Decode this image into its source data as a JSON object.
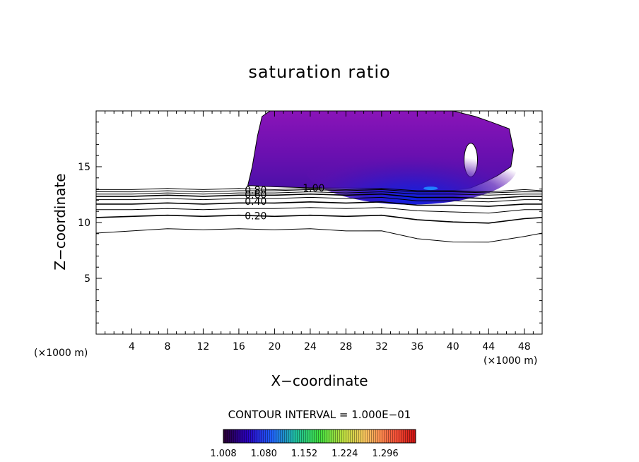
{
  "chart_data": {
    "type": "contour",
    "title": "saturation ratio",
    "xlabel": "X−coordinate",
    "ylabel": "Z−coordinate",
    "x_unit_left": "(×1000 m)",
    "x_unit_right": "(×1000 m)",
    "xlim": [
      0,
      50
    ],
    "ylim": [
      0,
      20
    ],
    "x_ticks": [
      4,
      8,
      12,
      16,
      20,
      24,
      28,
      32,
      36,
      40,
      44,
      48
    ],
    "y_ticks": [
      5,
      10,
      15
    ],
    "contour_interval_text": "CONTOUR INTERVAL = 1.000E−01",
    "contour_labels": [
      {
        "text": "0.80",
        "x": 16.5,
        "z": 12.9
      },
      {
        "text": "0.60",
        "x": 16.5,
        "z": 12.5
      },
      {
        "text": "0.40",
        "x": 16.5,
        "z": 11.9
      },
      {
        "text": "0.20",
        "x": 16.5,
        "z": 10.6
      },
      {
        "text": "1.00",
        "x": 23.0,
        "z": 13.1
      }
    ],
    "contour_lines": [
      {
        "level": 0.1,
        "x": [
          0,
          4,
          8,
          12,
          16,
          20,
          24,
          28,
          32,
          36,
          40,
          44,
          48,
          50
        ],
        "z": [
          9.0,
          9.3,
          9.4,
          9.4,
          9.4,
          9.4,
          9.4,
          9.3,
          9.2,
          8.6,
          8.2,
          8.3,
          8.7,
          9.1
        ]
      },
      {
        "level": 0.2,
        "x": [
          0,
          4,
          8,
          12,
          16,
          20,
          24,
          28,
          32,
          36,
          40,
          44,
          48,
          50
        ],
        "z": [
          10.4,
          10.6,
          10.6,
          10.6,
          10.6,
          10.6,
          10.6,
          10.6,
          10.6,
          10.3,
          10.0,
          10.0,
          10.3,
          10.5
        ]
      },
      {
        "level": 0.3,
        "x": [
          0,
          4,
          8,
          12,
          16,
          20,
          24,
          28,
          32,
          36,
          40,
          44,
          48,
          50
        ],
        "z": [
          11.1,
          11.2,
          11.2,
          11.2,
          11.2,
          11.3,
          11.3,
          11.3,
          11.3,
          11.1,
          10.9,
          10.9,
          11.1,
          11.2
        ]
      },
      {
        "level": 0.4,
        "x": [
          0,
          4,
          8,
          12,
          16,
          20,
          24,
          28,
          32,
          36,
          40,
          44,
          48,
          50
        ],
        "z": [
          11.6,
          11.7,
          11.7,
          11.7,
          11.7,
          11.8,
          11.8,
          11.8,
          11.8,
          11.6,
          11.5,
          11.5,
          11.6,
          11.7
        ]
      },
      {
        "level": 0.5,
        "x": [
          0,
          4,
          8,
          12,
          16,
          20,
          24,
          28,
          32,
          36,
          40,
          44,
          48,
          50
        ],
        "z": [
          12.0,
          12.1,
          12.1,
          12.1,
          12.1,
          12.2,
          12.2,
          12.2,
          12.2,
          12.0,
          11.9,
          11.9,
          12.0,
          12.1
        ]
      },
      {
        "level": 0.6,
        "x": [
          0,
          4,
          8,
          12,
          16,
          20,
          24,
          28,
          32,
          36,
          40,
          44,
          48,
          50
        ],
        "z": [
          12.3,
          12.4,
          12.4,
          12.4,
          12.4,
          12.5,
          12.5,
          12.5,
          12.5,
          12.3,
          12.2,
          12.2,
          12.3,
          12.4
        ]
      },
      {
        "level": 0.7,
        "x": [
          0,
          4,
          8,
          12,
          16,
          20,
          24,
          28,
          32,
          36,
          40,
          44,
          48,
          50
        ],
        "z": [
          12.5,
          12.6,
          12.6,
          12.6,
          12.6,
          12.7,
          12.7,
          12.7,
          12.7,
          12.6,
          12.5,
          12.5,
          12.5,
          12.6
        ]
      },
      {
        "level": 0.8,
        "x": [
          0,
          4,
          8,
          12,
          16,
          20,
          24,
          28,
          32,
          36,
          40,
          44,
          48,
          50
        ],
        "z": [
          12.7,
          12.8,
          12.8,
          12.8,
          12.8,
          12.9,
          12.9,
          12.9,
          12.9,
          12.8,
          12.7,
          12.7,
          12.7,
          12.8
        ]
      },
      {
        "level": 0.9,
        "x": [
          0,
          4,
          8,
          12,
          16,
          20,
          24,
          28,
          32,
          36,
          40,
          44,
          48,
          50
        ],
        "z": [
          12.9,
          13.0,
          13.0,
          13.0,
          13.0,
          13.0,
          13.0,
          13.0,
          13.0,
          12.9,
          12.8,
          12.8,
          12.9,
          12.9
        ]
      }
    ],
    "filled_region": {
      "level_min": 1.0,
      "outline_x": [
        17.0,
        17.5,
        18.1,
        18.6,
        19.5,
        25.0,
        30.0,
        36.0,
        40.0,
        42.5,
        44.3,
        46.3,
        46.8,
        46.5,
        45.0,
        43.5,
        42.0,
        40.0,
        38.5,
        36.0,
        32.0,
        28.0,
        24.0,
        20.0,
        17.5,
        17.0
      ],
      "outline_z": [
        13.3,
        15.0,
        17.8,
        19.5,
        20.0,
        20.0,
        20.0,
        20.0,
        20.0,
        19.5,
        19.0,
        18.4,
        16.5,
        15.0,
        14.2,
        13.6,
        13.1,
        12.9,
        12.9,
        13.0,
        13.1,
        13.1,
        13.1,
        13.2,
        13.3,
        13.3
      ],
      "hole_center": [
        42.0,
        15.6
      ],
      "hole_radii": [
        0.75,
        1.5
      ],
      "core_max_location": [
        37.5,
        13.0
      ]
    },
    "colorbar": {
      "min": 1.008,
      "max": 1.35,
      "tick_labels": [
        "1.008",
        "1.080",
        "1.152",
        "1.224",
        "1.296"
      ],
      "colors": [
        "#2a0030",
        "#2a00c0",
        "#2060ff",
        "#20c0a0",
        "#40e040",
        "#c0e040",
        "#ffc060",
        "#ff6040",
        "#d01010"
      ]
    }
  }
}
